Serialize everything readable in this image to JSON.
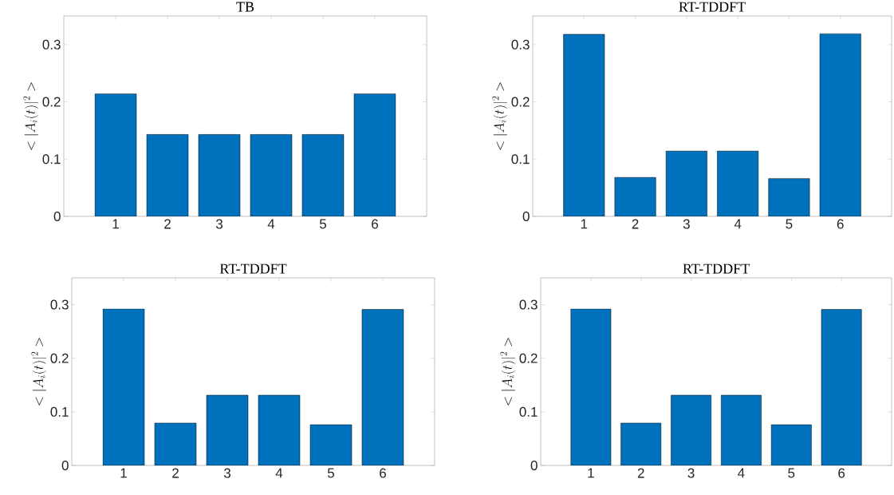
{
  "chart_data": [
    {
      "type": "bar",
      "title": "TB",
      "ylabel": "< |A_i(t)|^2 >",
      "x": [
        1,
        2,
        3,
        4,
        5,
        6
      ],
      "values": [
        0.214,
        0.143,
        0.143,
        0.143,
        0.143,
        0.214
      ],
      "color": "#0072bd",
      "xlim": [
        0,
        7
      ],
      "ylim": [
        0,
        0.35
      ],
      "xticks": [
        1,
        2,
        3,
        4,
        5,
        6
      ],
      "yticks": [
        0,
        0.1,
        0.2,
        0.3
      ]
    },
    {
      "type": "bar",
      "title": "RT-TDDFT",
      "ylabel": "< |A_i(t)|^2 >",
      "x": [
        1,
        2,
        3,
        4,
        5,
        6
      ],
      "values": [
        0.318,
        0.068,
        0.114,
        0.114,
        0.066,
        0.319
      ],
      "color": "#0072bd",
      "xlim": [
        0,
        7
      ],
      "ylim": [
        0,
        0.35
      ],
      "xticks": [
        1,
        2,
        3,
        4,
        5,
        6
      ],
      "yticks": [
        0,
        0.1,
        0.2,
        0.3
      ]
    },
    {
      "type": "bar",
      "title": "RT-TDDFT",
      "ylabel": "< |A_i(t)|^2 >",
      "x": [
        1,
        2,
        3,
        4,
        5,
        6
      ],
      "values": [
        0.292,
        0.079,
        0.131,
        0.131,
        0.076,
        0.291
      ],
      "color": "#0072bd",
      "xlim": [
        0,
        7
      ],
      "ylim": [
        0,
        0.35
      ],
      "xticks": [
        1,
        2,
        3,
        4,
        5,
        6
      ],
      "yticks": [
        0,
        0.1,
        0.2,
        0.3
      ]
    },
    {
      "type": "bar",
      "title": "RT-TDDFT",
      "ylabel": "< |A_i(t)|^2 >",
      "x": [
        1,
        2,
        3,
        4,
        5,
        6
      ],
      "values": [
        0.292,
        0.079,
        0.131,
        0.131,
        0.076,
        0.291
      ],
      "color": "#0072bd",
      "xlim": [
        0,
        7
      ],
      "ylim": [
        0,
        0.35
      ],
      "xticks": [
        1,
        2,
        3,
        4,
        5,
        6
      ],
      "yticks": [
        0,
        0.1,
        0.2,
        0.3
      ]
    }
  ]
}
